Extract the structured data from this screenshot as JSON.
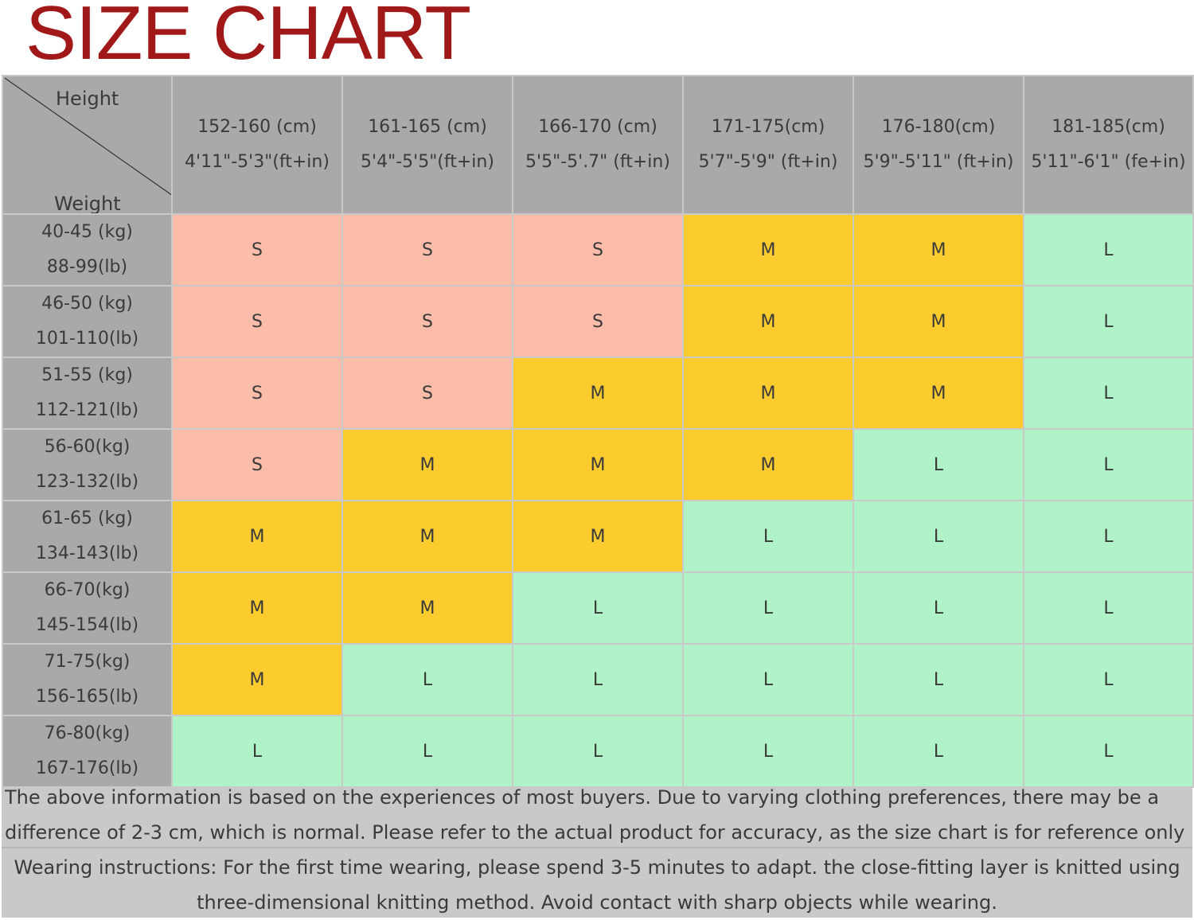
{
  "title": "SIZE CHART",
  "header": {
    "height_label": "Height",
    "weight_label": "Weight",
    "columns": [
      {
        "cm": "152-160 (cm)",
        "ft": "4'11\"-5'3\"(ft+in)"
      },
      {
        "cm": "161-165 (cm)",
        "ft": "5'4\"-5'5\"(ft+in)"
      },
      {
        "cm": "166-170 (cm)",
        "ft": "5'5\"-5'.7\" (ft+in)"
      },
      {
        "cm": "171-175(cm)",
        "ft": "5'7\"-5'9\" (ft+in)"
      },
      {
        "cm": "176-180(cm)",
        "ft": "5'9\"-5'11\" (ft+in)"
      },
      {
        "cm": "181-185(cm)",
        "ft": "5'11\"-6'1\" (fe+in)"
      }
    ]
  },
  "rows": [
    {
      "kg": "40-45 (kg)",
      "lb": "88-99(lb)",
      "sizes": [
        "S",
        "S",
        "S",
        "M",
        "M",
        "L"
      ]
    },
    {
      "kg": "46-50 (kg)",
      "lb": "101-110(lb)",
      "sizes": [
        "S",
        "S",
        "S",
        "M",
        "M",
        "L"
      ]
    },
    {
      "kg": "51-55 (kg)",
      "lb": "112-121(lb)",
      "sizes": [
        "S",
        "S",
        "M",
        "M",
        "M",
        "L"
      ]
    },
    {
      "kg": "56-60(kg)",
      "lb": "123-132(lb)",
      "sizes": [
        "S",
        "M",
        "M",
        "M",
        "L",
        "L"
      ]
    },
    {
      "kg": "61-65 (kg)",
      "lb": "134-143(lb)",
      "sizes": [
        "M",
        "M",
        "M",
        "L",
        "L",
        "L"
      ]
    },
    {
      "kg": "66-70(kg)",
      "lb": "145-154(lb)",
      "sizes": [
        "M",
        "M",
        "L",
        "L",
        "L",
        "L"
      ]
    },
    {
      "kg": "71-75(kg)",
      "lb": "156-165(lb)",
      "sizes": [
        "M",
        "L",
        "L",
        "L",
        "L",
        "L"
      ]
    },
    {
      "kg": "76-80(kg)",
      "lb": "167-176(lb)",
      "sizes": [
        "L",
        "L",
        "L",
        "L",
        "L",
        "L"
      ]
    }
  ],
  "colors": {
    "S": "#fbbcaa",
    "M": "#fccc2e",
    "L": "#b1f3c8",
    "header": "#a9a9a9",
    "title": "#a01818"
  },
  "notes": {
    "disclaimer": "The above information is based on the experiences of most buyers. Due to varying clothing preferences, there may be a difference of 2-3 cm, which is normal. Please refer to the actual product for accuracy, as the size chart is for reference only",
    "wearing": "Wearing instructions: For the first time wearing, please spend 3-5 minutes to adapt. the close-fitting layer is knitted using three-dimensional knitting method. Avoid contact with sharp objects while wearing."
  }
}
